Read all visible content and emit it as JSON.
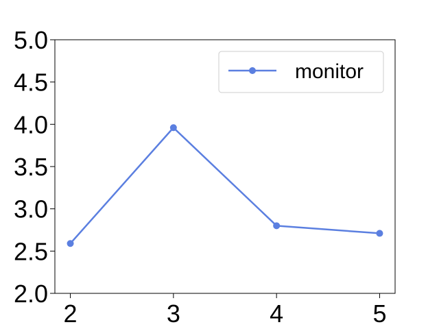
{
  "colors": {
    "series": "#5b7fe0",
    "axis": "#000000",
    "background": "#ffffff",
    "legend_border": "#cccccc"
  },
  "chart_data": {
    "type": "line",
    "title": "",
    "xlabel": "",
    "ylabel": "",
    "x": [
      2,
      3,
      4,
      5
    ],
    "x_ticks": [
      "2",
      "3",
      "4",
      "5"
    ],
    "y_ticks": [
      "2.0",
      "2.5",
      "3.0",
      "3.5",
      "4.0",
      "4.5",
      "5.0"
    ],
    "ylim": [
      2.0,
      5.0
    ],
    "xlim": [
      1.85,
      5.15
    ],
    "grid": false,
    "legend_position": "top-right",
    "series": [
      {
        "name": "monitor",
        "values": [
          2.59,
          3.96,
          2.8,
          2.71
        ],
        "marker": "circle"
      }
    ]
  }
}
